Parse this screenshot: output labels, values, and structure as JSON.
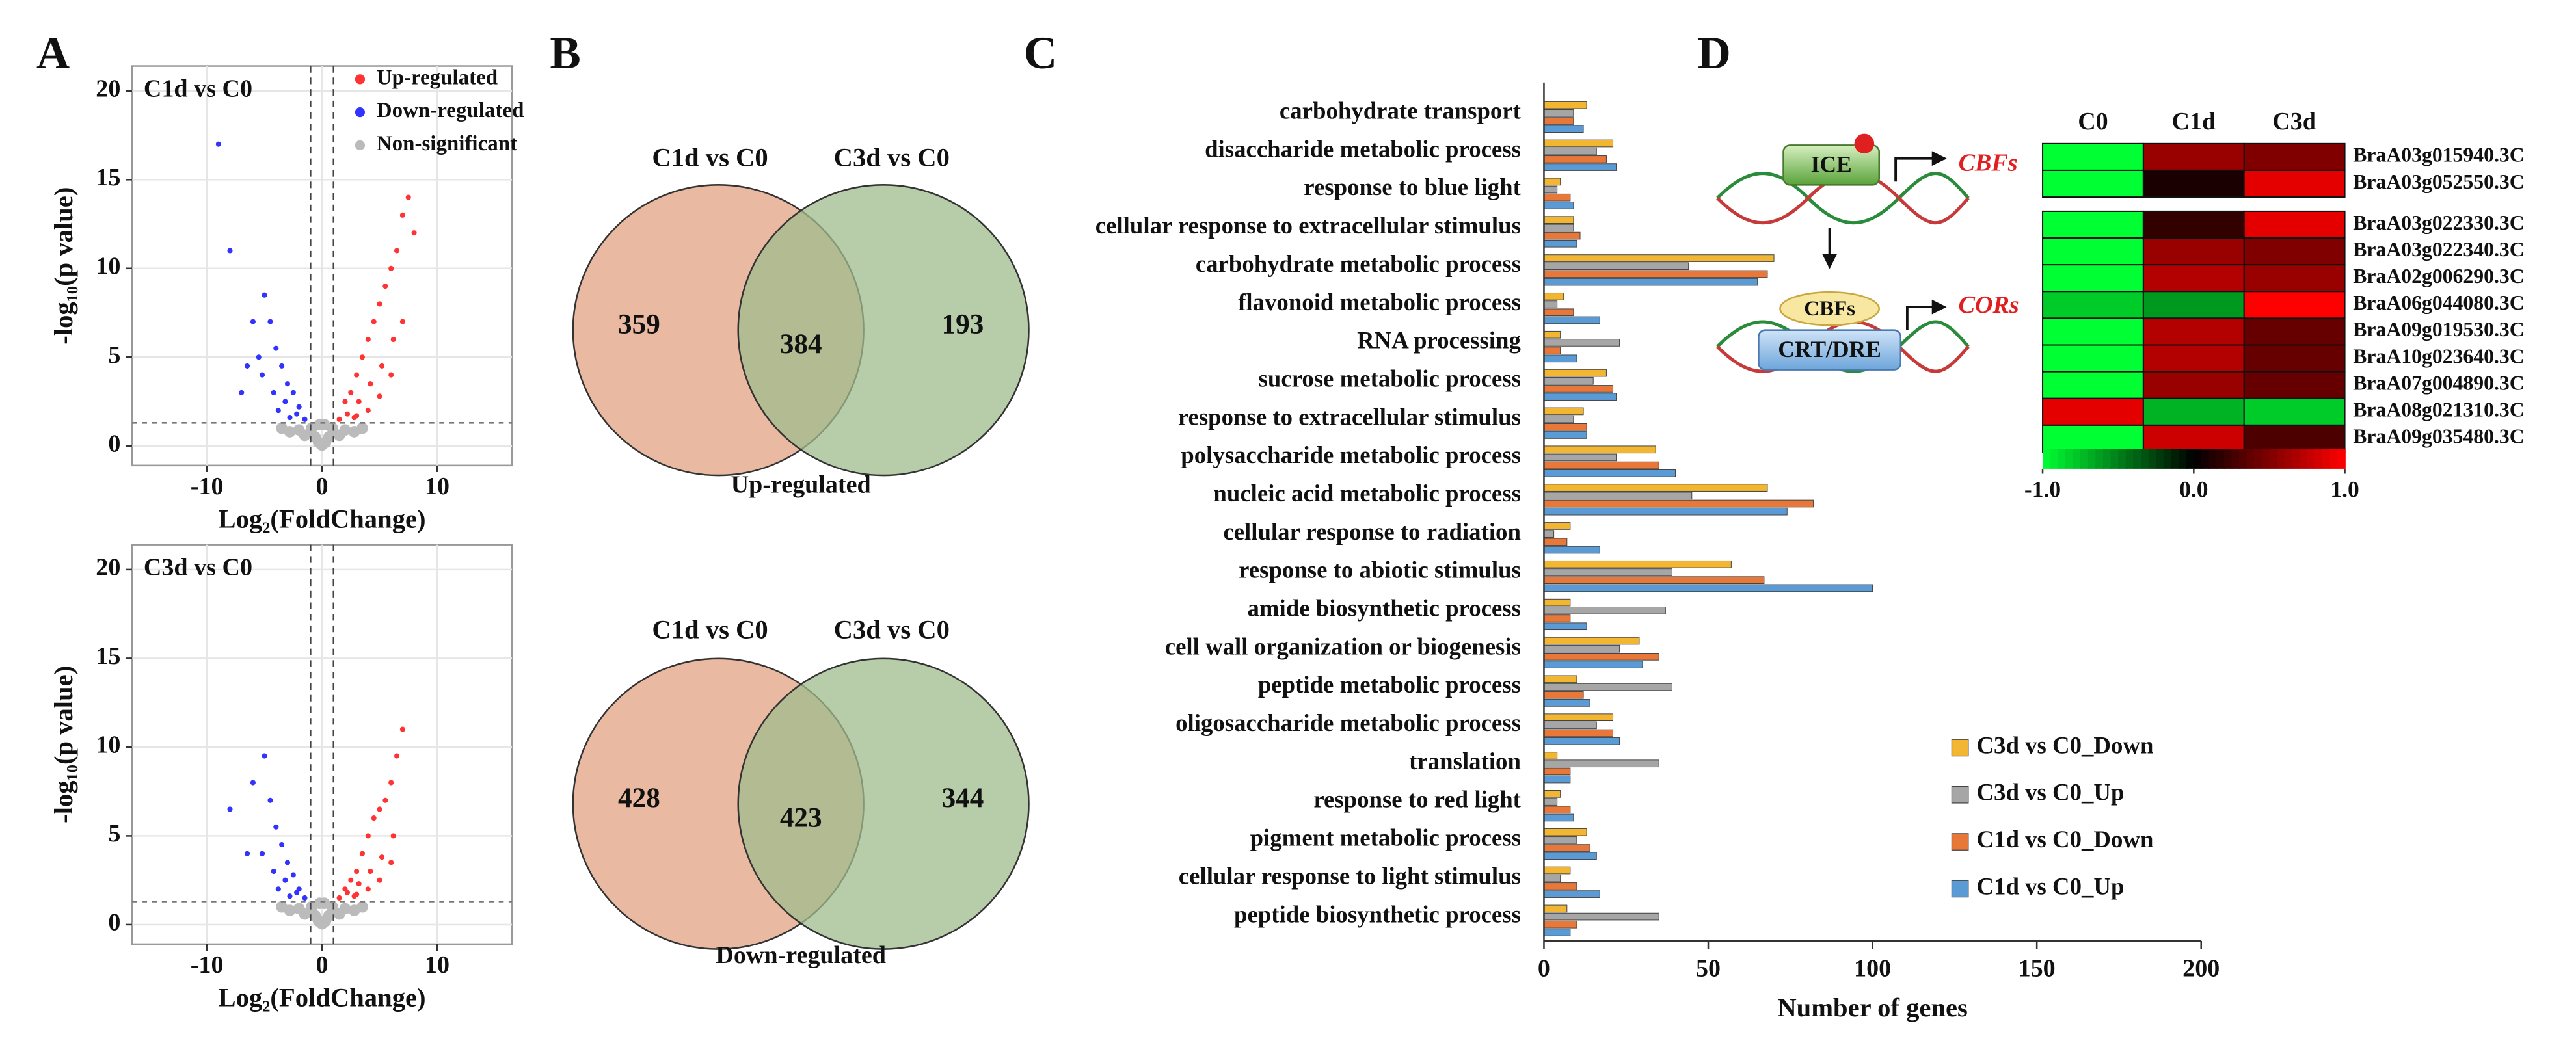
{
  "panels": [
    "A",
    "B",
    "C",
    "D"
  ],
  "diagram": {
    "ice": "ICE",
    "cbfs_out": "CBFs",
    "cbfs": "CBFs",
    "element": "CRT/DRE",
    "cors": "CORs"
  },
  "chart_data": [
    {
      "type": "scatter",
      "title": "C1d vs C0",
      "xlabel": "Log₂(FoldChange)",
      "ylabel": "-log₁₀(p value)",
      "xlim": [
        -16.5,
        16.5
      ],
      "ylim": [
        -1.1,
        21.4
      ],
      "xticks": [
        -10,
        0,
        10
      ],
      "yticks": [
        0,
        5,
        10,
        15,
        20
      ],
      "grid": true,
      "legend": "top-right",
      "vlines": [
        -1,
        1
      ],
      "hline": 1.3,
      "series": [
        {
          "name": "Up-regulated",
          "color": "#ff3333",
          "x": [
            1.5,
            2,
            2.5,
            3,
            3.5,
            4,
            4.5,
            5,
            5.5,
            6,
            6.5,
            7,
            7.5,
            8,
            2.2,
            3.2,
            4.2,
            5.2,
            6.2,
            2.8,
            4,
            5,
            6,
            7,
            3
          ],
          "y": [
            1.5,
            2.5,
            3,
            4,
            5,
            6,
            7,
            8,
            9,
            10,
            11,
            13,
            14,
            12,
            1.8,
            2.5,
            3.5,
            4.5,
            6,
            1.6,
            2,
            2.8,
            4,
            7,
            1.7
          ]
        },
        {
          "name": "Down-regulated",
          "color": "#3333ff",
          "x": [
            -1.5,
            -2,
            -2.5,
            -3,
            -3.5,
            -4,
            -4.5,
            -5,
            -6,
            -7,
            -8,
            -9,
            -2.2,
            -3.2,
            -4.2,
            -5.2,
            -5.5,
            -3.8,
            -2.8,
            -6.5
          ],
          "y": [
            1.5,
            2.2,
            3,
            3.5,
            4.5,
            5.5,
            7,
            8.5,
            7,
            3,
            11,
            17,
            1.8,
            2.5,
            3,
            4,
            5,
            2,
            1.6,
            4.5
          ]
        },
        {
          "name": "Non-significant",
          "color": "#bbbbbb",
          "x": [
            0,
            0.3,
            -0.3,
            0.6,
            -0.6,
            0.9,
            -0.9,
            1.5,
            -1.5,
            2,
            -2,
            2.8,
            -2.8,
            3.5,
            -3.5,
            0.2,
            -0.2
          ],
          "y": [
            0.05,
            0.2,
            0.2,
            0.5,
            0.5,
            1,
            1,
            0.6,
            0.6,
            0.9,
            0.9,
            0.8,
            0.8,
            1,
            1,
            1.2,
            1.2
          ]
        }
      ]
    },
    {
      "type": "scatter",
      "title": "C3d vs C0",
      "xlabel": "Log₂(FoldChange)",
      "ylabel": "-log₁₀(p value)",
      "xlim": [
        -16.5,
        16.5
      ],
      "ylim": [
        -1.1,
        21.4
      ],
      "xticks": [
        -10,
        0,
        10
      ],
      "yticks": [
        0,
        5,
        10,
        15,
        20
      ],
      "grid": true,
      "vlines": [
        -1,
        1
      ],
      "hline": 1.3,
      "series": [
        {
          "color": "#ff3333",
          "x": [
            1.5,
            2,
            2.5,
            3,
            3.5,
            4,
            4.5,
            5,
            5.5,
            6,
            6.5,
            7,
            2.2,
            3.2,
            4.2,
            5.2,
            6.2,
            2.8,
            4,
            5,
            6,
            3
          ],
          "y": [
            1.5,
            2,
            2.5,
            3,
            4,
            5,
            6,
            6.5,
            7,
            8,
            9.5,
            11,
            1.8,
            2.3,
            3,
            3.8,
            5,
            1.6,
            2,
            2.5,
            3.5,
            1.7
          ]
        },
        {
          "color": "#3333ff",
          "x": [
            -1.5,
            -2,
            -2.5,
            -3,
            -3.5,
            -4,
            -4.5,
            -5,
            -6,
            -8,
            -2.2,
            -3.2,
            -4.2,
            -5.2,
            -3.8,
            -2.8,
            -6.5
          ],
          "y": [
            1.5,
            2,
            2.8,
            3.5,
            4.5,
            5.5,
            7,
            9.5,
            8,
            6.5,
            1.8,
            2.5,
            3,
            4,
            2,
            1.6,
            4
          ]
        },
        {
          "color": "#bbbbbb",
          "x": [
            0,
            0.3,
            -0.3,
            0.6,
            -0.6,
            0.9,
            -0.9,
            1.5,
            -1.5,
            2,
            -2,
            2.8,
            -2.8,
            3.5,
            -3.5,
            0.2,
            -0.2
          ],
          "y": [
            0.05,
            0.2,
            0.2,
            0.5,
            0.5,
            1,
            1,
            0.6,
            0.6,
            0.9,
            0.9,
            0.8,
            0.8,
            1,
            1,
            1.2,
            1.2
          ]
        }
      ]
    },
    {
      "type": "venn",
      "sets": [
        "C1d vs C0",
        "C3d vs C0"
      ],
      "values": [
        359,
        384,
        193
      ],
      "label": "Up-regulated",
      "colors": [
        "#e3a283",
        "#9fbc8c"
      ]
    },
    {
      "type": "venn",
      "sets": [
        "C1d vs C0",
        "C3d vs C0"
      ],
      "values": [
        428,
        423,
        344
      ],
      "label": "Down-regulated",
      "colors": [
        "#e3a283",
        "#9fbc8c"
      ]
    },
    {
      "type": "bar",
      "orientation": "horizontal",
      "xlabel": "Number of genes",
      "xlim": [
        0,
        200
      ],
      "xticks": [
        0,
        50,
        100,
        150,
        200
      ],
      "legend": "bottom-right",
      "categories": [
        "carbohydrate transport",
        "disaccharide metabolic process",
        "response to blue light",
        "cellular response to extracellular stimulus",
        "carbohydrate metabolic process",
        "flavonoid metabolic process",
        "RNA processing",
        "sucrose metabolic process",
        "response to extracellular stimulus",
        "polysaccharide metabolic process",
        "nucleic acid metabolic process",
        "cellular response to radiation",
        "response to abiotic stimulus",
        "amide biosynthetic process",
        "cell wall organization or biogenesis",
        "peptide metabolic process",
        "oligosaccharide metabolic process",
        "translation",
        "response to red light",
        "pigment metabolic process",
        "cellular response to light stimulus",
        "peptide biosynthetic process"
      ],
      "series": [
        {
          "name": "C3d vs C0_Down",
          "color": "#f2b632",
          "values": [
            13,
            21,
            5,
            9,
            70,
            6,
            5,
            19,
            12,
            34,
            68,
            8,
            57,
            8,
            29,
            10,
            21,
            4,
            5,
            13,
            8,
            7
          ]
        },
        {
          "name": "C3d vs C0_Up",
          "color": "#a6a6a6",
          "values": [
            9,
            16,
            4,
            9,
            44,
            4,
            23,
            15,
            9,
            22,
            45,
            3,
            39,
            37,
            23,
            39,
            16,
            35,
            4,
            10,
            5,
            35
          ]
        },
        {
          "name": "C1d vs C0_Down",
          "color": "#e8773a",
          "values": [
            9,
            19,
            8,
            11,
            68,
            9,
            5,
            21,
            13,
            35,
            82,
            7,
            67,
            8,
            35,
            12,
            21,
            8,
            8,
            14,
            10,
            10
          ]
        },
        {
          "name": "C1d vs C0_Up",
          "color": "#5b9bd5",
          "values": [
            12,
            22,
            9,
            10,
            65,
            17,
            10,
            22,
            13,
            40,
            74,
            17,
            100,
            13,
            30,
            14,
            23,
            8,
            9,
            16,
            17,
            8
          ]
        }
      ]
    },
    {
      "type": "heatmap",
      "columns": [
        "C0",
        "C1d",
        "C3d"
      ],
      "colormap": [
        "#00ff33",
        "#000000",
        "#ff0000"
      ],
      "clim": [
        -1,
        1
      ],
      "cticks": [
        {
          "value": -1,
          "label": "-1.0"
        },
        {
          "value": 0,
          "label": "0.0"
        },
        {
          "value": 1,
          "label": "1.0"
        }
      ],
      "blocks": [
        {
          "rows": [
            "BraA03g015940.3C",
            "BraA03g052550.3C"
          ],
          "values": [
            [
              -1,
              0.6,
              0.5
            ],
            [
              -1,
              0.1,
              0.9
            ]
          ]
        },
        {
          "rows": [
            "BraA03g022330.3C",
            "BraA03g022340.3C",
            "BraA02g006290.3C",
            "BraA06g044080.3C",
            "BraA09g019530.3C",
            "BraA10g023640.3C",
            "BraA07g004890.3C",
            "BraA08g021310.3C",
            "BraA09g035480.3C"
          ],
          "values": [
            [
              -1,
              0.2,
              0.9
            ],
            [
              -1,
              0.6,
              0.5
            ],
            [
              -1,
              0.7,
              0.6
            ],
            [
              -0.8,
              -0.6,
              1
            ],
            [
              -1,
              0.7,
              0.4
            ],
            [
              -1,
              0.7,
              0.4
            ],
            [
              -1,
              0.6,
              0.4
            ],
            [
              0.9,
              -0.7,
              -0.8
            ],
            [
              -1,
              0.8,
              0.3
            ]
          ]
        }
      ]
    }
  ]
}
